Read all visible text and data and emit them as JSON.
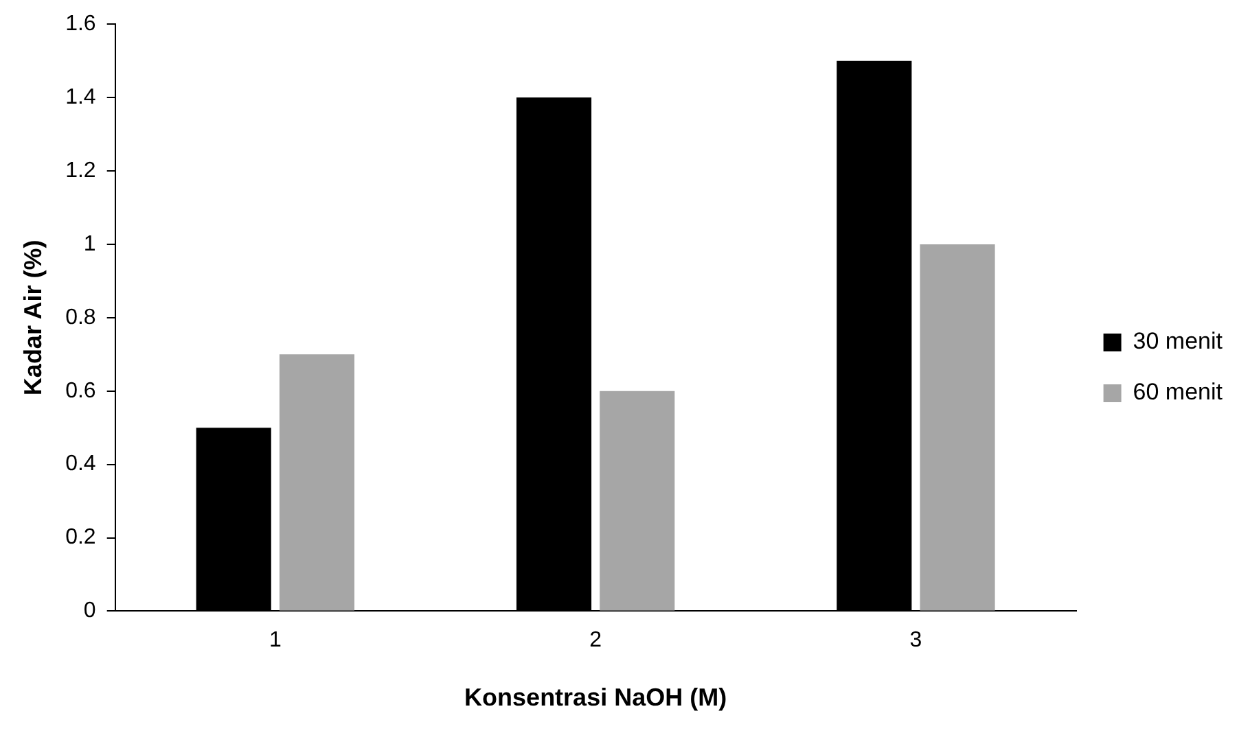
{
  "chart_data": {
    "type": "bar",
    "xlabel": "Konsentrasi NaOH (M)",
    "ylabel": "Kadar Air (%)",
    "categories": [
      "1",
      "2",
      "3"
    ],
    "series": [
      {
        "name": "30 menit",
        "color": "#000000",
        "values": [
          0.5,
          1.4,
          1.5
        ]
      },
      {
        "name": "60 menit",
        "color": "#a6a6a6",
        "values": [
          0.7,
          0.6,
          1.0
        ]
      }
    ],
    "ylim": [
      0,
      1.6
    ],
    "yticks": [
      0,
      0.2,
      0.4,
      0.6,
      0.8,
      1,
      1.2,
      1.4,
      1.6
    ],
    "grid": false,
    "legend": "right"
  }
}
